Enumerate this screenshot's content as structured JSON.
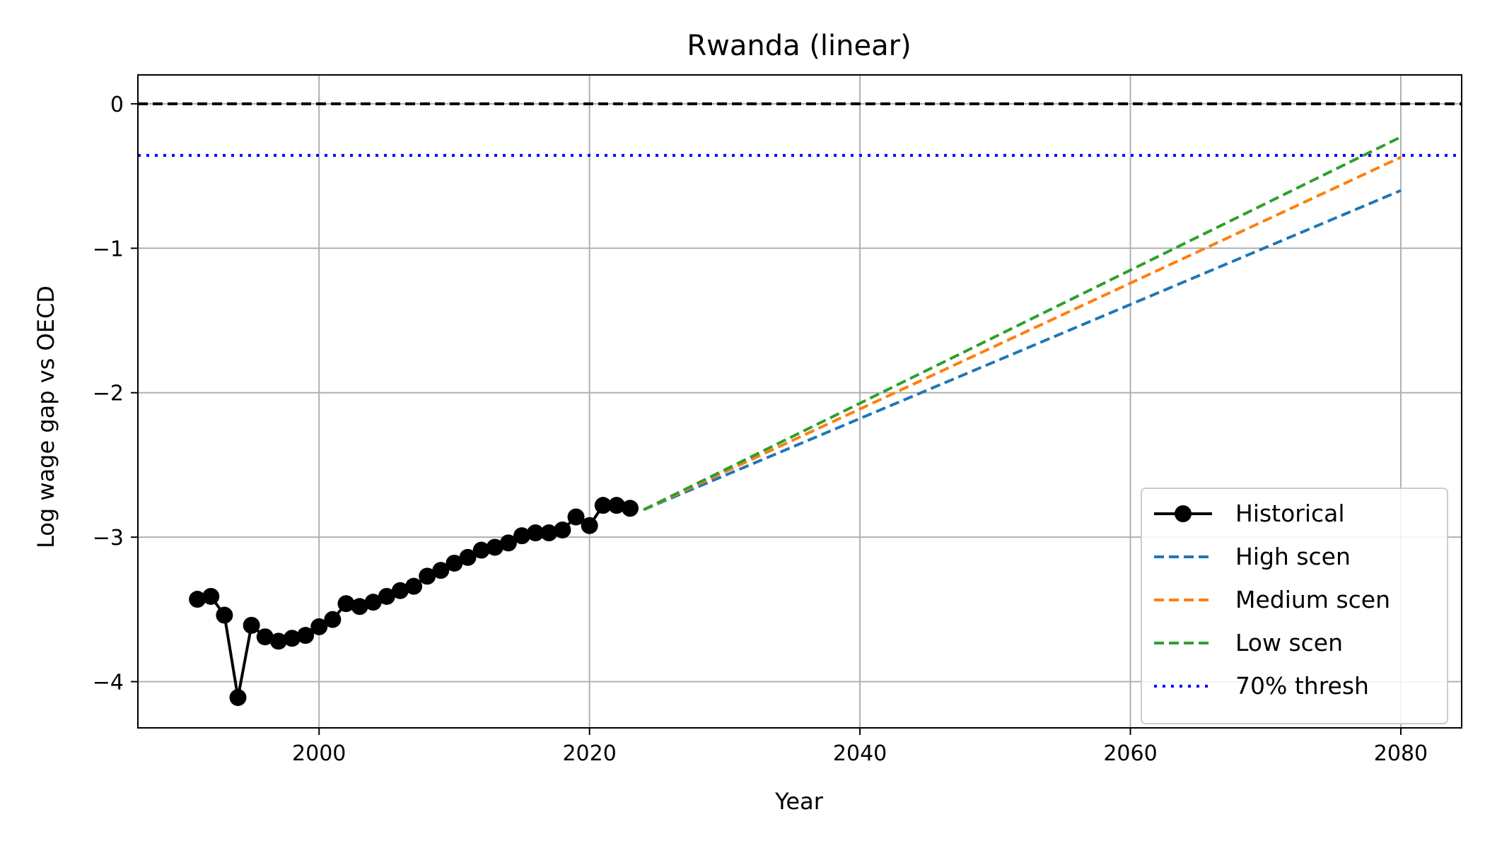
{
  "chart_data": {
    "type": "line",
    "title": "Rwanda (linear)",
    "xlabel": "Year",
    "ylabel": "Log wage gap vs OECD",
    "xlim": [
      1986.6,
      2084.5
    ],
    "ylim": [
      -4.32,
      0.2
    ],
    "xticks": [
      2000,
      2020,
      2040,
      2060,
      2080
    ],
    "yticks": [
      0,
      -1,
      -2,
      -3,
      -4
    ],
    "xtick_labels": [
      "2000",
      "2020",
      "2040",
      "2060",
      "2080"
    ],
    "ytick_labels": [
      "0",
      "−1",
      "−2",
      "−3",
      "−4"
    ],
    "grid": true,
    "legend_position": "lower-right",
    "series": [
      {
        "name": "Historical",
        "style": "solid-marker",
        "color": "#000000",
        "x": [
          1991,
          1992,
          1993,
          1994,
          1995,
          1996,
          1997,
          1998,
          1999,
          2000,
          2001,
          2002,
          2003,
          2004,
          2005,
          2006,
          2007,
          2008,
          2009,
          2010,
          2011,
          2012,
          2013,
          2014,
          2015,
          2016,
          2017,
          2018,
          2019,
          2020,
          2021,
          2022,
          2023
        ],
        "y": [
          -3.43,
          -3.41,
          -3.54,
          -4.11,
          -3.61,
          -3.69,
          -3.72,
          -3.7,
          -3.68,
          -3.62,
          -3.57,
          -3.46,
          -3.48,
          -3.45,
          -3.41,
          -3.37,
          -3.34,
          -3.27,
          -3.23,
          -3.18,
          -3.14,
          -3.09,
          -3.07,
          -3.04,
          -2.99,
          -2.97,
          -2.97,
          -2.95,
          -2.86,
          -2.92,
          -2.78,
          -2.78,
          -2.8
        ]
      },
      {
        "name": "High scen",
        "style": "dashed",
        "color": "#1f77b4",
        "x": [
          2024,
          2080
        ],
        "y": [
          -2.81,
          -0.6
        ]
      },
      {
        "name": "Medium scen",
        "style": "dashed",
        "color": "#ff7f0e",
        "x": [
          2024,
          2080
        ],
        "y": [
          -2.81,
          -0.37
        ]
      },
      {
        "name": "Low scen",
        "style": "dashed",
        "color": "#2ca02c",
        "x": [
          2024,
          2080
        ],
        "y": [
          -2.81,
          -0.23
        ]
      }
    ],
    "reference_lines": [
      {
        "name": "",
        "y": 0,
        "style": "dashed",
        "color": "#000000"
      },
      {
        "name": "70% thresh",
        "y": -0.357,
        "style": "dotted",
        "color": "#0000ff"
      }
    ]
  }
}
